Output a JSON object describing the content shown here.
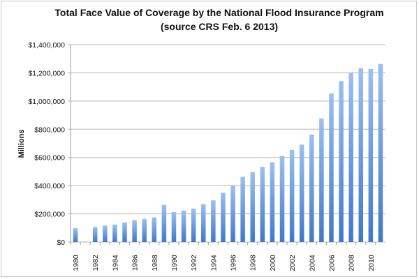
{
  "chart_data": {
    "type": "bar",
    "title": "Total Face Value of Coverage by the National Flood Insurance Program",
    "subtitle": "(source CRS Feb. 6 2013)",
    "xlabel": "",
    "ylabel": "Millions",
    "ylim": [
      0,
      1400000
    ],
    "yticks": [
      0,
      200000,
      400000,
      600000,
      800000,
      1000000,
      1200000,
      1400000
    ],
    "ytick_labels": [
      "$0",
      "$200,000",
      "$400,000",
      "$600,000",
      "$800,000",
      "$1,000,000",
      "$1,200,000",
      "$1,400,000"
    ],
    "grid": true,
    "bar_color": "#5b8fd8",
    "categories": [
      1980,
      1981,
      1982,
      1983,
      1984,
      1985,
      1986,
      1987,
      1988,
      1989,
      1990,
      1991,
      1992,
      1993,
      1994,
      1995,
      1996,
      1997,
      1998,
      1999,
      2000,
      2001,
      2002,
      2003,
      2004,
      2005,
      2006,
      2007,
      2008,
      2009,
      2010,
      2011
    ],
    "xtick_labels": [
      "1980",
      "1982",
      "1984",
      "1986",
      "1988",
      "1990",
      "1992",
      "1994",
      "1996",
      "1998",
      "2000",
      "2002",
      "2004",
      "2006",
      "2008",
      "2010"
    ],
    "values": [
      98000,
      2000,
      107000,
      117000,
      124000,
      139000,
      155000,
      164000,
      175000,
      264000,
      213000,
      223000,
      236000,
      268000,
      296000,
      350000,
      400000,
      462000,
      496000,
      533000,
      566000,
      610000,
      653000,
      691000,
      763000,
      876000,
      1054000,
      1141000,
      1200000,
      1232000,
      1227000,
      1263000
    ]
  }
}
